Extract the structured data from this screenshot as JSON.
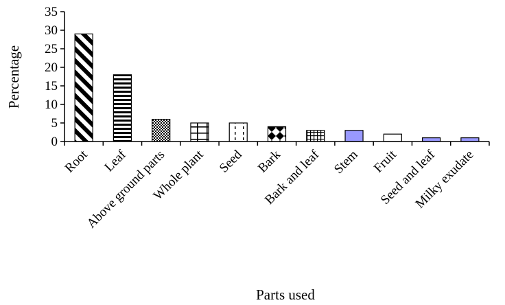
{
  "chart_data": {
    "type": "bar",
    "xlabel": "Parts used",
    "ylabel": "Percentage",
    "ylim": [
      0,
      35
    ],
    "yticks": [
      0,
      5,
      10,
      15,
      20,
      25,
      30,
      35
    ],
    "grid": false,
    "categories": [
      "Root",
      "Leaf",
      "Above ground parts",
      "Whole plant",
      "Seed",
      "Bark",
      "Bark and leaf",
      "Stem",
      "Fruit",
      "Seed and leaf",
      "Milky exudate"
    ],
    "values": [
      29,
      18,
      6,
      5,
      5,
      4,
      3,
      3,
      2,
      1,
      1
    ],
    "bar_fills": [
      "diagonal-stripes",
      "horizontal-stripes",
      "checker-dark",
      "grid-white",
      "dashed-white",
      "bowtie-dark",
      "grid-fine",
      "solid-lavender",
      "solid-white",
      "solid-lavender",
      "solid-lavender"
    ],
    "colors": {
      "lavender": "#9999ff",
      "axis": "#000000",
      "background": "#ffffff"
    }
  }
}
